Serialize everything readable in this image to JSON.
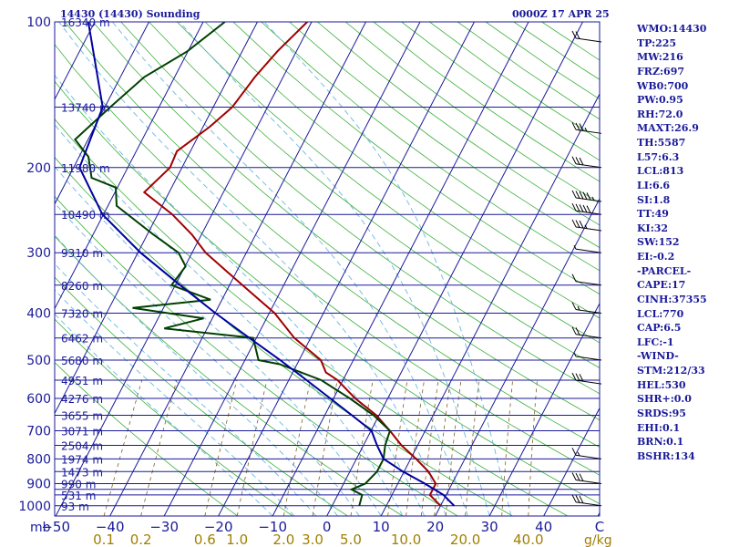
{
  "header": {
    "station": "14430 (14430) Sounding",
    "valid_time": "0000Z 17 APR 25"
  },
  "indices": [
    "WMO:14430",
    "TP:225",
    "MW:216",
    "FRZ:697",
    "WB0:700",
    "PW:0.95",
    "RH:72.0",
    "MAXT:26.9",
    "TH:5587",
    "L57:6.3",
    "LCL:813",
    "LI:6.6",
    "SI:1.8",
    "TT:49",
    "KI:32",
    "SW:152",
    "EI:-0.2",
    "-PARCEL-",
    "CAPE:17",
    "CINH:37355",
    "LCL:770",
    "CAP:6.5",
    "LFC:-1",
    "-WIND-",
    "STM:212/33",
    "HEL:530",
    "SHR+:0.0",
    "SRDS:95",
    "EHI:0.1",
    "BRN:0.1",
    "BSHR:134"
  ],
  "chart_data": {
    "type": "line",
    "title": "",
    "pressure_axis_label": "mb",
    "temperature_axis_label": "",
    "mixing_ratio_unit": "g/kg",
    "pressure_levels_mb": [
      100,
      150,
      200,
      250,
      300,
      350,
      400,
      450,
      500,
      550,
      600,
      650,
      700,
      750,
      800,
      850,
      900,
      925,
      950,
      1000
    ],
    "pressure_tick_labels": [
      "100",
      "200",
      "300",
      "400",
      "500",
      "600",
      "700",
      "800",
      "900",
      "1000"
    ],
    "height_labels": [
      "16340 m",
      "13740 m",
      "11980 m",
      "10490 m",
      "9310 m",
      "8260 m",
      "7320 m",
      "6462 m",
      "5680 m",
      "4951 m",
      "4276 m",
      "3655 m",
      "3071 m",
      "2504 m",
      "1974 m",
      "1473 m",
      "990 m",
      "531 m",
      "93 m"
    ],
    "temperature_ticks_c": [
      -50,
      -40,
      -30,
      -20,
      -10,
      0,
      10,
      20,
      30,
      40
    ],
    "mixing_ratio_labels": [
      "0.1",
      "0.2",
      "0.6",
      "1.0",
      "2.0",
      "3.0",
      "5.0",
      "10.0",
      "20.0",
      "40.0"
    ],
    "plim_mb": [
      100,
      1050
    ],
    "tlim_bottom_c": [
      -50,
      50
    ],
    "series": [
      {
        "name": "",
        "color": "#a00000",
        "points": [
          {
            "p": 100,
            "t": -50.8
          },
          {
            "p": 115,
            "t": -53.5
          },
          {
            "p": 130,
            "t": -55.2
          },
          {
            "p": 150,
            "t": -56.5
          },
          {
            "p": 165,
            "t": -58.8
          },
          {
            "p": 185,
            "t": -62.5
          },
          {
            "p": 200,
            "t": -62.2
          },
          {
            "p": 225,
            "t": -64.6
          },
          {
            "p": 250,
            "t": -57.3
          },
          {
            "p": 275,
            "t": -51.8
          },
          {
            "p": 300,
            "t": -47.5
          },
          {
            "p": 330,
            "t": -41.4
          },
          {
            "p": 360,
            "t": -35.8
          },
          {
            "p": 400,
            "t": -29.0
          },
          {
            "p": 450,
            "t": -23.0
          },
          {
            "p": 500,
            "t": -16.0
          },
          {
            "p": 530,
            "t": -13.9
          },
          {
            "p": 550,
            "t": -11.0
          },
          {
            "p": 600,
            "t": -6.0
          },
          {
            "p": 650,
            "t": -0.5
          },
          {
            "p": 700,
            "t": 3.5
          },
          {
            "p": 750,
            "t": 7.0
          },
          {
            "p": 800,
            "t": 11.0
          },
          {
            "p": 850,
            "t": 14.5
          },
          {
            "p": 900,
            "t": 17.0
          },
          {
            "p": 925,
            "t": 17.0
          },
          {
            "p": 950,
            "t": 17.0
          },
          {
            "p": 1000,
            "t": 20.0
          }
        ]
      },
      {
        "name": "",
        "color": "#004000",
        "points": [
          {
            "p": 100,
            "t": -66.0
          },
          {
            "p": 115,
            "t": -70.1
          },
          {
            "p": 130,
            "t": -75.6
          },
          {
            "p": 150,
            "t": -79.0
          },
          {
            "p": 175,
            "t": -82.4
          },
          {
            "p": 190,
            "t": -78.3
          },
          {
            "p": 210,
            "t": -75.7
          },
          {
            "p": 220,
            "t": -70.3
          },
          {
            "p": 240,
            "t": -68.4
          },
          {
            "p": 275,
            "t": -58.9
          },
          {
            "p": 300,
            "t": -52.5
          },
          {
            "p": 320,
            "t": -49.9
          },
          {
            "p": 350,
            "t": -50.7
          },
          {
            "p": 375,
            "t": -42.1
          },
          {
            "p": 390,
            "t": -55.7
          },
          {
            "p": 410,
            "t": -41.6
          },
          {
            "p": 430,
            "t": -47.9
          },
          {
            "p": 450,
            "t": -30.6
          },
          {
            "p": 500,
            "t": -27.5
          },
          {
            "p": 510,
            "t": -23.2
          },
          {
            "p": 550,
            "t": -14.0
          },
          {
            "p": 600,
            "t": -7.0
          },
          {
            "p": 650,
            "t": -1.0
          },
          {
            "p": 700,
            "t": 3.5
          },
          {
            "p": 750,
            "t": 4.0
          },
          {
            "p": 800,
            "t": 5.0
          },
          {
            "p": 850,
            "t": 5.0
          },
          {
            "p": 900,
            "t": 4.0
          },
          {
            "p": 925,
            "t": 2.0
          },
          {
            "p": 950,
            "t": 4.5
          },
          {
            "p": 1000,
            "t": 5.0
          }
        ]
      },
      {
        "name": "",
        "color": "#0000a0",
        "points": [
          {
            "p": 100,
            "t": -91.2
          },
          {
            "p": 150,
            "t": -80.4
          },
          {
            "p": 200,
            "t": -78.9
          },
          {
            "p": 250,
            "t": -70.2
          },
          {
            "p": 300,
            "t": -59.5
          },
          {
            "p": 350,
            "t": -49.1
          },
          {
            "p": 400,
            "t": -39.9
          },
          {
            "p": 450,
            "t": -31.3
          },
          {
            "p": 500,
            "t": -23.5
          },
          {
            "p": 550,
            "t": -16.7
          },
          {
            "p": 600,
            "t": -10.6
          },
          {
            "p": 650,
            "t": -5.0
          },
          {
            "p": 700,
            "t": 0.1
          },
          {
            "p": 750,
            "t": 2.5
          },
          {
            "p": 800,
            "t": 5.0
          },
          {
            "p": 850,
            "t": 9.8
          },
          {
            "p": 900,
            "t": 15.0
          },
          {
            "p": 950,
            "t": 19.5
          },
          {
            "p": 1000,
            "t": 22.5
          }
        ]
      }
    ],
    "wind_barbs": [
      {
        "p": 110,
        "speed_kt": 20
      },
      {
        "p": 170,
        "speed_kt": 35
      },
      {
        "p": 200,
        "speed_kt": 30
      },
      {
        "p": 235,
        "speed_kt": 55
      },
      {
        "p": 250,
        "speed_kt": 50
      },
      {
        "p": 270,
        "speed_kt": 35
      },
      {
        "p": 300,
        "speed_kt": 5
      },
      {
        "p": 350,
        "speed_kt": 10
      },
      {
        "p": 400,
        "speed_kt": 15
      },
      {
        "p": 450,
        "speed_kt": 20
      },
      {
        "p": 500,
        "speed_kt": 5
      },
      {
        "p": 560,
        "speed_kt": 30
      },
      {
        "p": 800,
        "speed_kt": 15
      },
      {
        "p": 900,
        "speed_kt": 30
      },
      {
        "p": 1000,
        "speed_kt": 30
      }
    ]
  }
}
